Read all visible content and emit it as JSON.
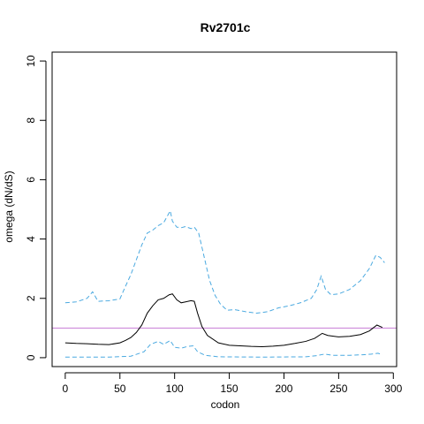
{
  "chart_data": {
    "type": "line",
    "title": "Rv2701c",
    "xlabel": "codon",
    "ylabel": "omega (dN/dS)",
    "xlim": [
      -12,
      303
    ],
    "ylim": [
      -0.3,
      10.3
    ],
    "xticks": [
      0,
      50,
      100,
      150,
      200,
      250,
      300
    ],
    "yticks": [
      0,
      2,
      4,
      6,
      8,
      10
    ],
    "grid": false,
    "reference_line": {
      "y": 1,
      "color": "#c77cd6"
    },
    "series": [
      {
        "style": "solid",
        "color": "#000000",
        "points": [
          [
            0,
            0.5
          ],
          [
            10,
            0.48
          ],
          [
            20,
            0.47
          ],
          [
            30,
            0.45
          ],
          [
            40,
            0.44
          ],
          [
            50,
            0.5
          ],
          [
            55,
            0.58
          ],
          [
            60,
            0.68
          ],
          [
            65,
            0.85
          ],
          [
            70,
            1.1
          ],
          [
            75,
            1.5
          ],
          [
            80,
            1.75
          ],
          [
            85,
            1.95
          ],
          [
            90,
            2.0
          ],
          [
            95,
            2.12
          ],
          [
            98,
            2.15
          ],
          [
            102,
            1.95
          ],
          [
            106,
            1.85
          ],
          [
            110,
            1.88
          ],
          [
            115,
            1.92
          ],
          [
            118,
            1.9
          ],
          [
            121,
            1.5
          ],
          [
            125,
            1.05
          ],
          [
            130,
            0.75
          ],
          [
            140,
            0.5
          ],
          [
            150,
            0.42
          ],
          [
            160,
            0.4
          ],
          [
            170,
            0.38
          ],
          [
            180,
            0.37
          ],
          [
            190,
            0.39
          ],
          [
            200,
            0.42
          ],
          [
            210,
            0.48
          ],
          [
            220,
            0.55
          ],
          [
            228,
            0.65
          ],
          [
            235,
            0.82
          ],
          [
            240,
            0.75
          ],
          [
            250,
            0.7
          ],
          [
            260,
            0.72
          ],
          [
            270,
            0.78
          ],
          [
            278,
            0.9
          ],
          [
            285,
            1.1
          ],
          [
            290,
            1.02
          ]
        ]
      },
      {
        "style": "dashed",
        "color": "#4aa9e0",
        "points": [
          [
            0,
            1.85
          ],
          [
            10,
            1.88
          ],
          [
            20,
            2.0
          ],
          [
            25,
            2.22
          ],
          [
            30,
            1.9
          ],
          [
            40,
            1.92
          ],
          [
            50,
            1.98
          ],
          [
            55,
            2.4
          ],
          [
            60,
            2.8
          ],
          [
            65,
            3.3
          ],
          [
            70,
            3.8
          ],
          [
            75,
            4.2
          ],
          [
            80,
            4.3
          ],
          [
            85,
            4.45
          ],
          [
            90,
            4.55
          ],
          [
            93,
            4.75
          ],
          [
            96,
            4.95
          ],
          [
            98,
            4.6
          ],
          [
            102,
            4.4
          ],
          [
            106,
            4.38
          ],
          [
            110,
            4.42
          ],
          [
            115,
            4.35
          ],
          [
            118,
            4.4
          ],
          [
            122,
            4.2
          ],
          [
            127,
            3.4
          ],
          [
            132,
            2.6
          ],
          [
            137,
            2.1
          ],
          [
            142,
            1.8
          ],
          [
            148,
            1.6
          ],
          [
            155,
            1.62
          ],
          [
            165,
            1.55
          ],
          [
            175,
            1.5
          ],
          [
            185,
            1.55
          ],
          [
            195,
            1.68
          ],
          [
            205,
            1.75
          ],
          [
            215,
            1.85
          ],
          [
            225,
            2.0
          ],
          [
            230,
            2.3
          ],
          [
            234,
            2.75
          ],
          [
            238,
            2.3
          ],
          [
            243,
            2.12
          ],
          [
            250,
            2.15
          ],
          [
            260,
            2.3
          ],
          [
            270,
            2.6
          ],
          [
            278,
            3.0
          ],
          [
            284,
            3.45
          ],
          [
            288,
            3.38
          ],
          [
            292,
            3.2
          ]
        ]
      },
      {
        "style": "dashed",
        "color": "#4aa9e0",
        "points": [
          [
            0,
            0.02
          ],
          [
            40,
            0.02
          ],
          [
            60,
            0.05
          ],
          [
            72,
            0.2
          ],
          [
            78,
            0.45
          ],
          [
            85,
            0.55
          ],
          [
            90,
            0.45
          ],
          [
            96,
            0.58
          ],
          [
            100,
            0.35
          ],
          [
            106,
            0.32
          ],
          [
            112,
            0.38
          ],
          [
            117,
            0.4
          ],
          [
            121,
            0.2
          ],
          [
            128,
            0.08
          ],
          [
            140,
            0.03
          ],
          [
            180,
            0.02
          ],
          [
            220,
            0.03
          ],
          [
            230,
            0.07
          ],
          [
            237,
            0.12
          ],
          [
            245,
            0.08
          ],
          [
            260,
            0.08
          ],
          [
            272,
            0.1
          ],
          [
            280,
            0.12
          ],
          [
            286,
            0.15
          ],
          [
            290,
            0.1
          ]
        ]
      }
    ]
  }
}
